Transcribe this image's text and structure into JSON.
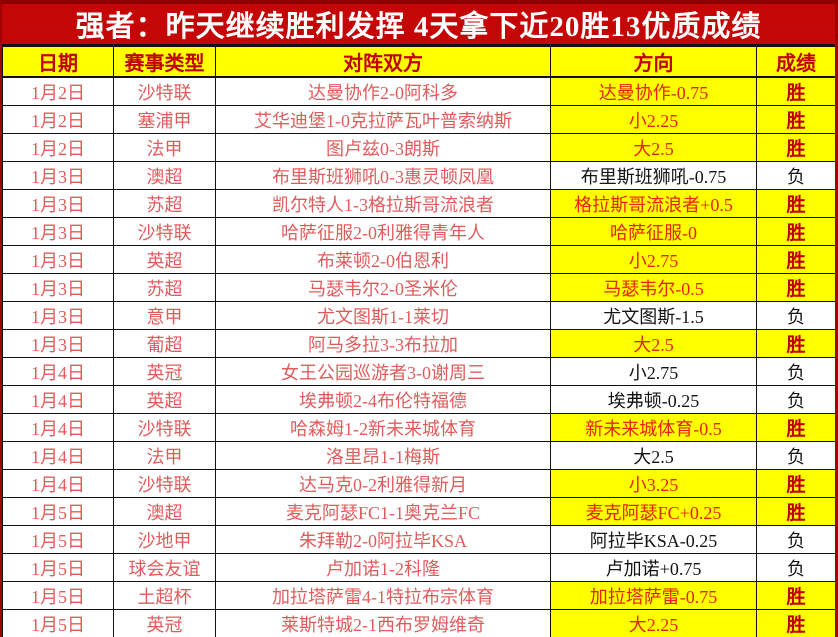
{
  "title": "强者：昨天继续胜利发挥 4天拿下近20胜13优质成绩",
  "colors": {
    "title_bg": "#c40606",
    "frame_border": "#a40000",
    "header_bg": "#ffff00",
    "header_text": "#c00000",
    "body_text": "#e05c5c",
    "win_bg": "#ffff00",
    "win_direction_text": "#e62500",
    "win_result_text": "#c00000",
    "loss_text": "#141414"
  },
  "table": {
    "headers": [
      "日期",
      "赛事类型",
      "对阵双方",
      "方向",
      "成绩"
    ],
    "rows": [
      {
        "date": "1月2日",
        "league": "沙特联",
        "match": "达曼协作2-0阿科多",
        "direction": "达曼协作-0.75",
        "result": "胜",
        "win": true
      },
      {
        "date": "1月2日",
        "league": "塞浦甲",
        "match": "艾华迪堡1-0克拉萨瓦叶普索纳斯",
        "direction": "小2.25",
        "result": "胜",
        "win": true
      },
      {
        "date": "1月2日",
        "league": "法甲",
        "match": "图卢兹0-3朗斯",
        "direction": "大2.5",
        "result": "胜",
        "win": true
      },
      {
        "date": "1月3日",
        "league": "澳超",
        "match": "布里斯班狮吼0-3惠灵顿凤凰",
        "direction": "布里斯班狮吼-0.75",
        "result": "负",
        "win": false
      },
      {
        "date": "1月3日",
        "league": "苏超",
        "match": "凯尔特人1-3格拉斯哥流浪者",
        "direction": "格拉斯哥流浪者+0.5",
        "result": "胜",
        "win": true
      },
      {
        "date": "1月3日",
        "league": "沙特联",
        "match": "哈萨征服2-0利雅得青年人",
        "direction": "哈萨征服-0",
        "result": "胜",
        "win": true
      },
      {
        "date": "1月3日",
        "league": "英超",
        "match": "布莱顿2-0伯恩利",
        "direction": "小2.75",
        "result": "胜",
        "win": true
      },
      {
        "date": "1月3日",
        "league": "苏超",
        "match": "马瑟韦尔2-0圣米伦",
        "direction": "马瑟韦尔-0.5",
        "result": "胜",
        "win": true
      },
      {
        "date": "1月3日",
        "league": "意甲",
        "match": "尤文图斯1-1莱切",
        "direction": "尤文图斯-1.5",
        "result": "负",
        "win": false
      },
      {
        "date": "1月3日",
        "league": "葡超",
        "match": "阿马多拉3-3布拉加",
        "direction": "大2.5",
        "result": "胜",
        "win": true
      },
      {
        "date": "1月4日",
        "league": "英冠",
        "match": "女王公园巡游者3-0谢周三",
        "direction": "小2.75",
        "result": "负",
        "win": false
      },
      {
        "date": "1月4日",
        "league": "英超",
        "match": "埃弗顿2-4布伦特福德",
        "direction": "埃弗顿-0.25",
        "result": "负",
        "win": false
      },
      {
        "date": "1月4日",
        "league": "沙特联",
        "match": "哈森姆1-2新未来城体育",
        "direction": "新未来城体育-0.5",
        "result": "胜",
        "win": true
      },
      {
        "date": "1月4日",
        "league": "法甲",
        "match": "洛里昂1-1梅斯",
        "direction": "大2.5",
        "result": "负",
        "win": false
      },
      {
        "date": "1月4日",
        "league": "沙特联",
        "match": "达马克0-2利雅得新月",
        "direction": "小3.25",
        "result": "胜",
        "win": true
      },
      {
        "date": "1月5日",
        "league": "澳超",
        "match": "麦克阿瑟FC1-1奥克兰FC",
        "direction": "麦克阿瑟FC+0.25",
        "result": "胜",
        "win": true
      },
      {
        "date": "1月5日",
        "league": "沙地甲",
        "match": "朱拜勒2-0阿拉毕KSA",
        "direction": "阿拉毕KSA-0.25",
        "result": "负",
        "win": false
      },
      {
        "date": "1月5日",
        "league": "球会友谊",
        "match": "卢加诺1-2科隆",
        "direction": "卢加诺+0.75",
        "result": "负",
        "win": false
      },
      {
        "date": "1月5日",
        "league": "土超杯",
        "match": "加拉塔萨雷4-1特拉布宗体育",
        "direction": "加拉塔萨雷-0.75",
        "result": "胜",
        "win": true
      },
      {
        "date": "1月5日",
        "league": "英冠",
        "match": "莱斯特城2-1西布罗姆维奇",
        "direction": "大2.25",
        "result": "胜",
        "win": true
      }
    ]
  }
}
